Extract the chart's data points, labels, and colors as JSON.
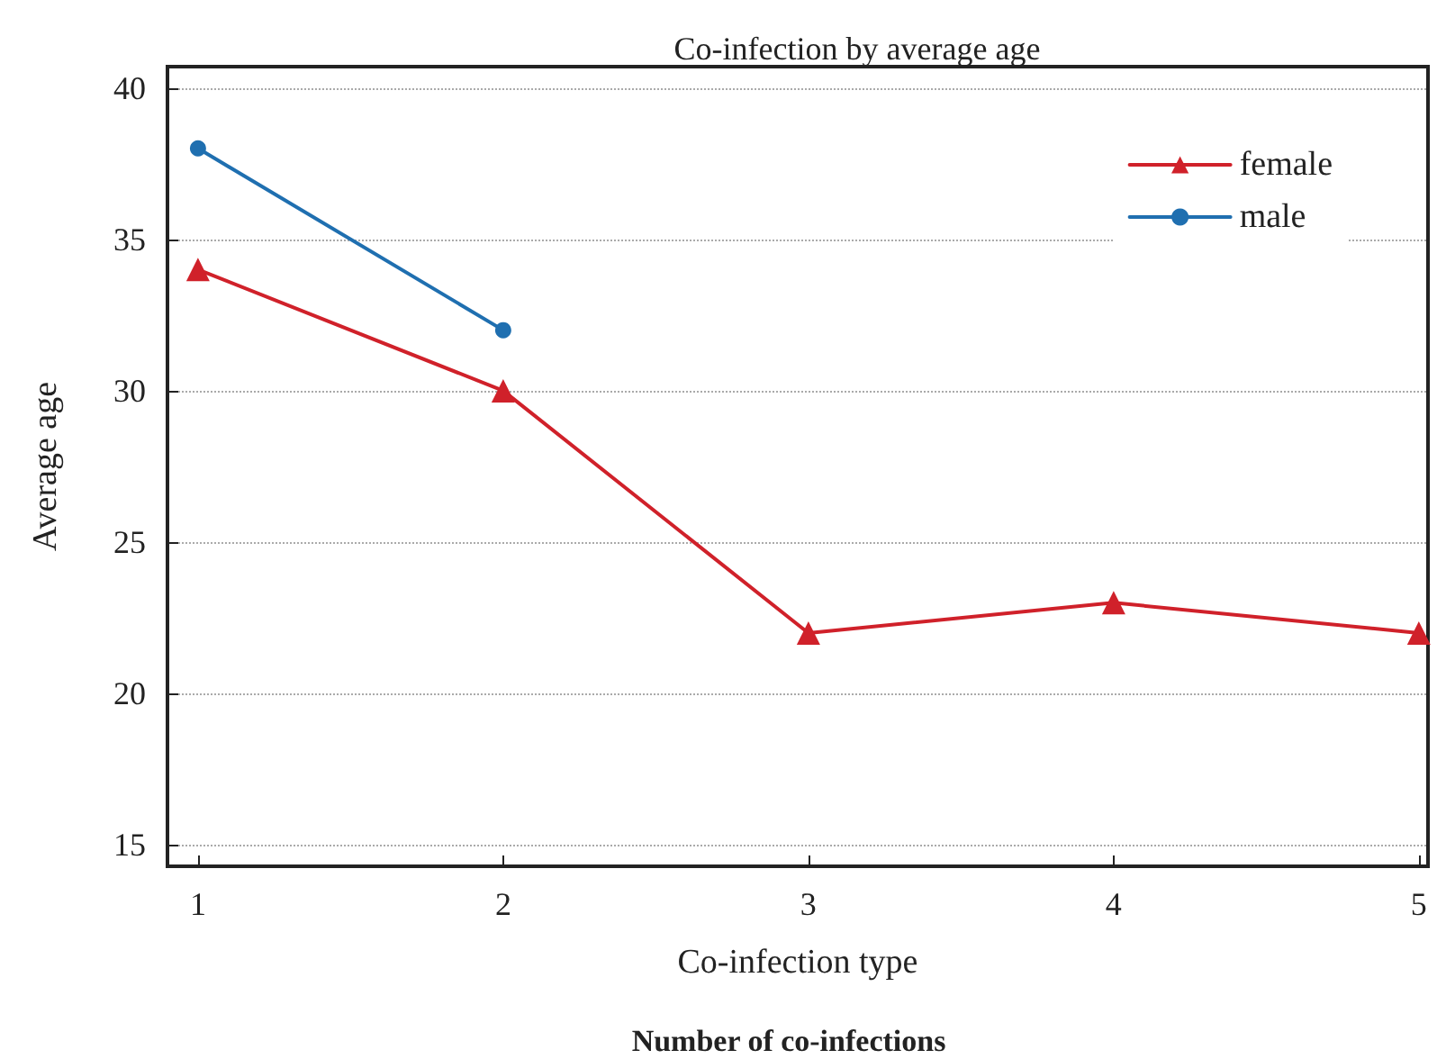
{
  "chart_data": {
    "type": "line",
    "title": "Co-infection by average age",
    "xlabel": "Co-infection type",
    "ylabel": "Average age",
    "annotations": [
      "Number of co-infections"
    ],
    "x": [
      1,
      2,
      3,
      4,
      5
    ],
    "series": [
      {
        "name": "female",
        "color": "#d0212a",
        "marker": "triangle",
        "values": [
          34,
          30,
          22,
          23,
          22
        ]
      },
      {
        "name": "male",
        "color": "#1f6fb0",
        "marker": "circle",
        "values": [
          38,
          32,
          null,
          null,
          null
        ]
      }
    ],
    "xlim": [
      0.9,
      5.03
    ],
    "xticks": [
      1,
      2,
      3,
      4,
      5
    ],
    "ylim": [
      14.3,
      40.7
    ],
    "yticks": [
      15,
      20,
      25,
      30,
      35,
      40
    ],
    "grid": "y",
    "legend": "top right",
    "line_style": "solid"
  }
}
